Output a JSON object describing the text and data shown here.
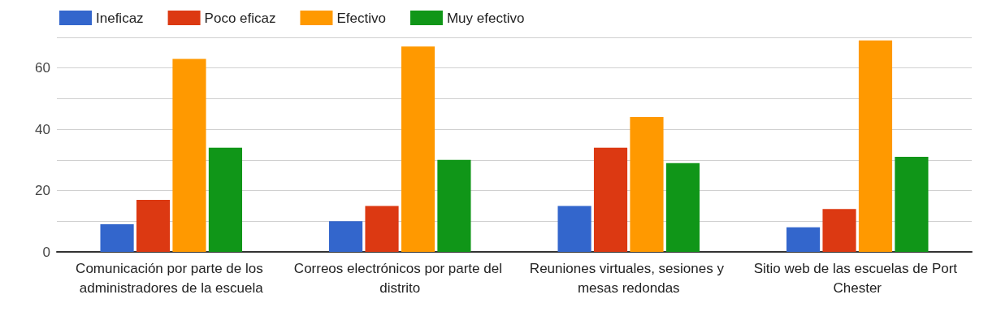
{
  "chart_data": {
    "type": "bar",
    "categories": [
      "Comunicación por parte de los administradores de la escuela",
      "Correos electrónicos por parte del distrito",
      "Reuniones virtuales, sesiones y mesas redondas",
      "Sitio web de las escuelas de Port Chester"
    ],
    "series": [
      {
        "name": "Ineficaz",
        "color": "#3366cc",
        "values": [
          9,
          10,
          15,
          8
        ]
      },
      {
        "name": "Poco eficaz",
        "color": "#dc3912",
        "values": [
          17,
          15,
          34,
          14
        ]
      },
      {
        "name": "Efectivo",
        "color": "#ff9900",
        "values": [
          63,
          67,
          44,
          69
        ]
      },
      {
        "name": "Muy efectivo",
        "color": "#109618",
        "values": [
          34,
          30,
          29,
          31
        ]
      }
    ],
    "ylim": [
      0,
      70
    ],
    "yticks": [
      0,
      {
        "value": 10,
        "label": null
      },
      20,
      {
        "value": 30,
        "label": null
      },
      40,
      {
        "value": 50,
        "label": null
      },
      60,
      {
        "value": 70,
        "label": null
      }
    ],
    "grid": "y",
    "legend": "top left"
  }
}
